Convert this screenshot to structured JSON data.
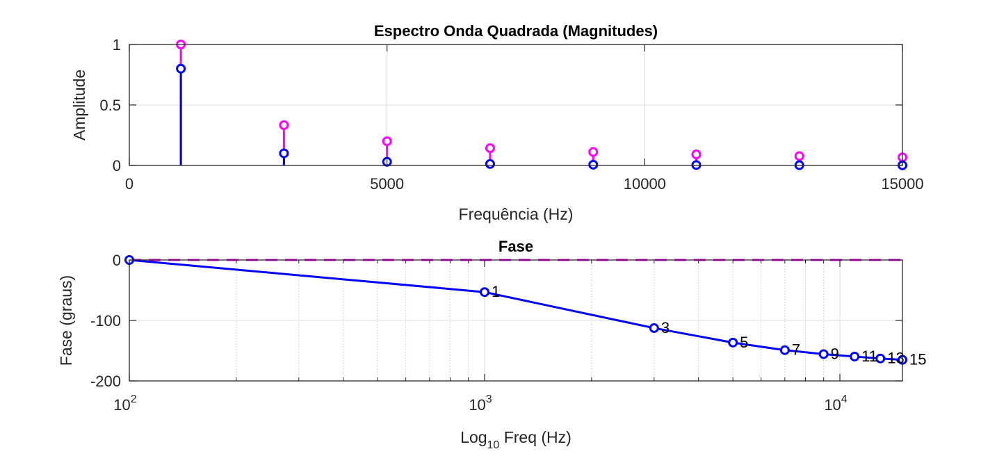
{
  "chart_data": [
    {
      "type": "stem",
      "title": "Espectro Onda Quadrada (Magnitudes)",
      "xlabel": "Frequência (Hz)",
      "ylabel": "Amplitude",
      "xlim": [
        0,
        15000
      ],
      "ylim": [
        0,
        1
      ],
      "xticks": [
        0,
        5000,
        10000,
        15000
      ],
      "xtick_labels": [
        "0",
        "5000",
        "10000",
        "15000"
      ],
      "yticks": [
        0,
        0.5,
        1
      ],
      "ytick_labels": [
        "0",
        "0.5",
        "1"
      ],
      "grid": true,
      "series": [
        {
          "color": "#ff00ff",
          "x": [
            1000,
            3000,
            5000,
            7000,
            9000,
            11000,
            13000,
            15000
          ],
          "values": [
            1,
            0.333,
            0.2,
            0.143,
            0.111,
            0.091,
            0.077,
            0.067
          ]
        },
        {
          "color": "#0000ff",
          "x": [
            1000,
            3000,
            5000,
            7000,
            9000,
            11000,
            13000,
            15000
          ],
          "values": [
            0.8,
            0.1,
            0.03,
            0.012,
            0.006,
            0.003,
            0.002,
            0.001
          ]
        }
      ]
    },
    {
      "type": "line",
      "title": "Fase",
      "xlabel_main": "Log",
      "xlabel_sub": "10",
      "xlabel_rest": " Freq (Hz)",
      "ylabel": "Fase (graus)",
      "xscale": "log",
      "xlim": [
        100,
        15000
      ],
      "ylim": [
        -200,
        0
      ],
      "xticks": [
        100,
        1000,
        10000
      ],
      "xtick_labels": [
        {
          "base": "10",
          "exp": "2"
        },
        {
          "base": "10",
          "exp": "3"
        },
        {
          "base": "10",
          "exp": "4"
        }
      ],
      "yticks": [
        -200,
        -100,
        0
      ],
      "ytick_labels": [
        "-200",
        "-100",
        "0"
      ],
      "grid": true,
      "series": [
        {
          "color": "#ff00ff",
          "style": "dashed",
          "x": [
            100,
            15000
          ],
          "values": [
            0,
            0
          ]
        },
        {
          "color": "#0000ff",
          "style": "solid",
          "x": [
            100,
            1000,
            3000,
            5000,
            7000,
            9000,
            11000,
            13000,
            15000
          ],
          "values": [
            0,
            -53.1,
            -112.6,
            -136.6,
            -149.1,
            -155.7,
            -159.7,
            -162.9,
            -165.1
          ],
          "labels": [
            "",
            "1",
            "3",
            "5",
            "7",
            "9",
            "11",
            "13",
            "15"
          ]
        }
      ]
    }
  ]
}
